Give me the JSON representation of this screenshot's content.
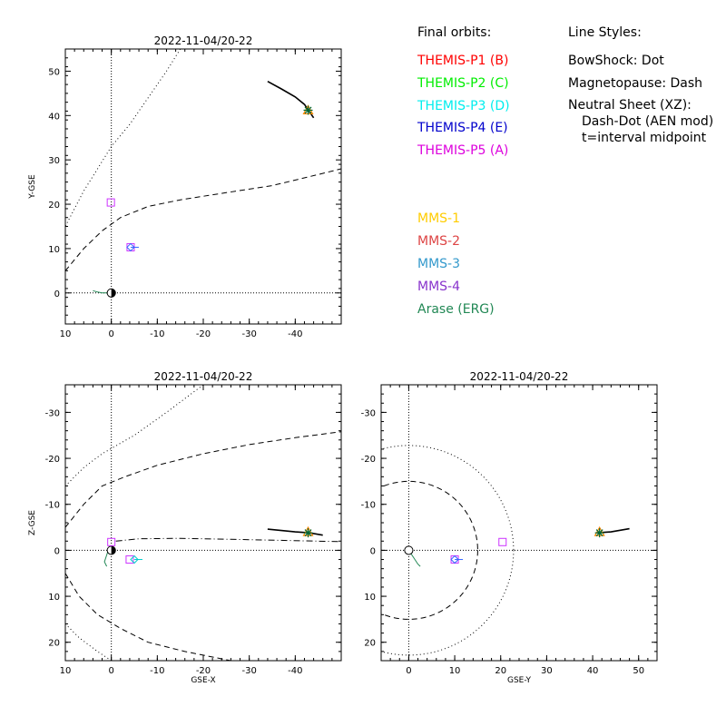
{
  "chart_data": [
    {
      "type": "line",
      "title": "2022-11-04/20-22",
      "xlabel": "",
      "ylabel": "Y-GSE",
      "xlim": [
        10,
        -50
      ],
      "ylim": [
        55,
        -7
      ],
      "xticks": [
        10,
        0,
        -10,
        -20,
        -30,
        -40
      ],
      "yticks": [
        0,
        10,
        20,
        30,
        40,
        50
      ],
      "curves": {
        "bowshock": [
          [
            -15,
            55
          ],
          [
            -12,
            50
          ],
          [
            -8,
            44
          ],
          [
            -4,
            38
          ],
          [
            0,
            33
          ],
          [
            3,
            28
          ],
          [
            6,
            23
          ],
          [
            8,
            19
          ],
          [
            10,
            15
          ]
        ],
        "magnetopause": [
          [
            10,
            5
          ],
          [
            6,
            10
          ],
          [
            2,
            14
          ],
          [
            -2,
            17
          ],
          [
            -8,
            19.5
          ],
          [
            -15,
            21
          ],
          [
            -25,
            22.6
          ],
          [
            -35,
            24.2
          ],
          [
            -45,
            26.7
          ],
          [
            -50,
            28
          ]
        ],
        "erg_orbit": [
          [
            -34,
            47.7
          ],
          [
            -37,
            46
          ],
          [
            -40,
            44.2
          ],
          [
            -42,
            42.5
          ],
          [
            -43,
            41
          ],
          [
            -44,
            39.5
          ]
        ],
        "erg_near_earth": [
          [
            4,
            0.5
          ],
          [
            3,
            0.2
          ],
          [
            2,
            0
          ],
          [
            1,
            0
          ],
          [
            0,
            0
          ],
          [
            -0.5,
            0
          ]
        ]
      },
      "markers": [
        {
          "name": "THEMIS-P4 (E)",
          "x": -4.2,
          "y": 10.3,
          "shape": "square",
          "color": "#cc33ff"
        },
        {
          "name": "THEMIS-P3 (D)",
          "x": -4.2,
          "y": 10.3,
          "shape": "diamond",
          "color": "#3366ff"
        },
        {
          "name": "THEMIS-P5 (A)",
          "x": 0.1,
          "y": 20.4,
          "shape": "square",
          "color": "#cc33ff"
        },
        {
          "name": "MMS",
          "x": -42.8,
          "y": 41.2,
          "shape": "triangle",
          "color": "#ff8800"
        },
        {
          "name": "Arase (ERG)",
          "x": -42.8,
          "y": 41.2,
          "shape": "star",
          "color": "#006633"
        }
      ]
    },
    {
      "type": "line",
      "title": "2022-11-04/20-22",
      "xlabel": "GSE-X",
      "ylabel": "Z-GSE",
      "xlim": [
        10,
        -50
      ],
      "ylim": [
        -36,
        24
      ],
      "xticks": [
        10,
        0,
        -10,
        -20,
        -30,
        -40
      ],
      "yticks": [
        20,
        10,
        0,
        -10,
        -20,
        -30
      ],
      "curves": {
        "bowshock_top": [
          [
            10,
            16
          ],
          [
            7,
            19
          ],
          [
            3,
            22
          ],
          [
            0,
            24
          ]
        ],
        "bowshock_bottom": [
          [
            10,
            -14
          ],
          [
            6,
            -18
          ],
          [
            2,
            -21
          ],
          [
            -5,
            -25
          ],
          [
            -12,
            -30
          ],
          [
            -20,
            -36
          ]
        ],
        "magnetopause_top": [
          [
            10,
            5
          ],
          [
            7,
            10
          ],
          [
            3,
            14
          ],
          [
            -2,
            17
          ],
          [
            -8,
            20
          ],
          [
            -16,
            22
          ],
          [
            -26,
            24
          ]
        ],
        "magnetopause_bottom": [
          [
            10,
            -5
          ],
          [
            6,
            -10
          ],
          [
            2,
            -14
          ],
          [
            -3,
            -16
          ],
          [
            -10,
            -18.5
          ],
          [
            -20,
            -21
          ],
          [
            -30,
            -23
          ],
          [
            -40,
            -24.5
          ],
          [
            -50,
            -25.8
          ]
        ],
        "neutral_sheet": [
          [
            -1,
            -2
          ],
          [
            -6,
            -2.5
          ],
          [
            -15,
            -2.6
          ],
          [
            -30,
            -2.3
          ],
          [
            -45,
            -2
          ],
          [
            -50,
            -1.9
          ]
        ],
        "erg_orbit": [
          [
            -34,
            -4.6
          ],
          [
            -40,
            -4
          ],
          [
            -43,
            -3.8
          ],
          [
            -46,
            -3.3
          ]
        ],
        "erg_near_earth": [
          [
            0.5,
            -0.5
          ],
          [
            1,
            1
          ],
          [
            1.5,
            2.5
          ],
          [
            1,
            3.5
          ]
        ]
      },
      "markers": [
        {
          "name": "THEMIS-P4 (E)",
          "x": -4,
          "y": 2,
          "shape": "square",
          "color": "#cc33ff"
        },
        {
          "name": "THEMIS-P3 (D)",
          "x": -5,
          "y": 2,
          "shape": "diamond",
          "color": "#00cccc"
        },
        {
          "name": "THEMIS-P5 (A)",
          "x": 0,
          "y": -1.8,
          "shape": "square",
          "color": "#cc33ff"
        },
        {
          "name": "MMS",
          "x": -42.8,
          "y": -4,
          "shape": "triangle",
          "color": "#ff8800"
        },
        {
          "name": "Arase (ERG)",
          "x": -42.8,
          "y": -3.8,
          "shape": "star",
          "color": "#006633"
        }
      ]
    },
    {
      "type": "line",
      "title": "2022-11-04/20-22",
      "xlabel": "GSE-Y",
      "ylabel": "",
      "xlim": [
        -6,
        54
      ],
      "ylim": [
        -36,
        24
      ],
      "xticks": [
        0,
        10,
        20,
        30,
        40,
        50
      ],
      "yticks": [
        20,
        10,
        0,
        -10,
        -20,
        -30
      ],
      "curves": {
        "bowshock_circle_radius": 22.8,
        "magnetopause_circle_radius": 15,
        "erg_orbit": [
          [
            41,
            -3.8
          ],
          [
            44,
            -4
          ],
          [
            48,
            -4.7
          ]
        ],
        "erg_near_earth": [
          [
            0,
            0
          ],
          [
            1,
            1.5
          ],
          [
            2,
            3
          ],
          [
            2.5,
            3.5
          ]
        ]
      },
      "markers": [
        {
          "name": "THEMIS-P4 (E)",
          "x": 10,
          "y": 2,
          "shape": "square",
          "color": "#cc33ff"
        },
        {
          "name": "THEMIS-P3 (D)",
          "x": 10,
          "y": 2,
          "shape": "diamond",
          "color": "#3366ff"
        },
        {
          "name": "THEMIS-P5 (A)",
          "x": 20.4,
          "y": -1.8,
          "shape": "square",
          "color": "#cc33ff"
        },
        {
          "name": "MMS",
          "x": 41.5,
          "y": -4,
          "shape": "triangle",
          "color": "#ff8800"
        },
        {
          "name": "Arase (ERG)",
          "x": 41.5,
          "y": -3.8,
          "shape": "star",
          "color": "#006633"
        }
      ]
    }
  ],
  "legend": {
    "final_orbits_title": "Final orbits:",
    "probes": [
      {
        "label": "THEMIS-P1 (B)",
        "color": "#ff0000"
      },
      {
        "label": "THEMIS-P2 (C)",
        "color": "#00ee00"
      },
      {
        "label": "THEMIS-P3 (D)",
        "color": "#00eeee"
      },
      {
        "label": "THEMIS-P4 (E)",
        "color": "#0000cc"
      },
      {
        "label": "THEMIS-P5 (A)",
        "color": "#dd00dd"
      }
    ],
    "other": [
      {
        "label": "MMS-1",
        "color": "#ffcc00"
      },
      {
        "label": "MMS-2",
        "color": "#dd4444"
      },
      {
        "label": "MMS-3",
        "color": "#3399cc"
      },
      {
        "label": "MMS-4",
        "color": "#8833cc"
      },
      {
        "label": "Arase (ERG)",
        "color": "#228855"
      }
    ],
    "line_styles_title": "Line Styles:",
    "line_styles": [
      "BowShock: Dot",
      "Magnetopause: Dash",
      "Neutral Sheet (XZ):",
      "Dash-Dot (AEN mod)",
      "t=interval midpoint"
    ]
  }
}
